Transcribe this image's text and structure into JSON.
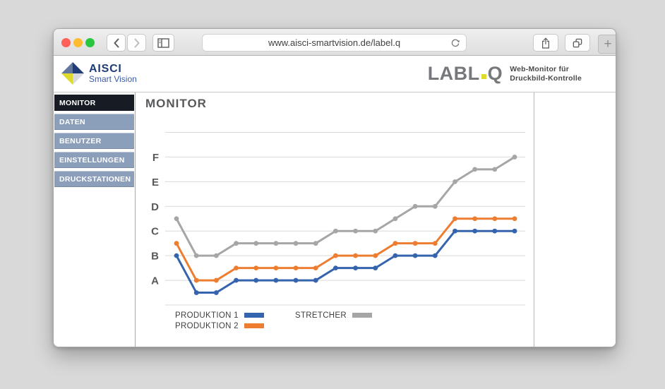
{
  "browser": {
    "url": "www.aisci-smartvision.de/label.q",
    "new_tab_label": "+",
    "icons": {
      "close": "red-traffic-light",
      "minimize": "yellow-traffic-light",
      "zoom": "green-traffic-light",
      "back": "chevron-left",
      "forward": "chevron-right",
      "sidebar_toggle": "sidebar-panel",
      "reload": "refresh-arrow",
      "share": "box-with-up-arrow",
      "tab_overview": "overlapping-squares",
      "new_tab": "plus"
    }
  },
  "header": {
    "brand_name": "AISCI",
    "brand_subtitle": "Smart Vision",
    "product_left": "LABL",
    "product_right": "Q",
    "tagline_line1": "Web-Monitor für",
    "tagline_line2": "Druckbild-Kontrolle"
  },
  "sidebar": {
    "items": [
      {
        "label": "MONITOR",
        "active": true
      },
      {
        "label": "DATEN",
        "active": false
      },
      {
        "label": "BENUTZER",
        "active": false
      },
      {
        "label": "EINSTELLUNGEN",
        "active": false
      },
      {
        "label": "DRUCKSTATIONEN",
        "active": false
      }
    ]
  },
  "main": {
    "title": "MONITOR"
  },
  "colors": {
    "series_blue": "#3564AE",
    "series_orange": "#ED7D31",
    "series_gray": "#A6A6A6",
    "sidebar_item": "#8B9FBA",
    "sidebar_active": "#161B24",
    "logo_navy": "#1F3C77",
    "logo_slate": "#64789F",
    "logo_yellow": "#DFDB2E",
    "traffic_red": "#FF5F57",
    "traffic_yellow": "#FEBC2E",
    "traffic_green": "#2AC63F"
  },
  "chart_data": {
    "type": "line",
    "title": "",
    "y_axis_labels": [
      "A",
      "B",
      "C",
      "D",
      "E",
      "F"
    ],
    "y_label_values": [
      1,
      2,
      3,
      4,
      5,
      6
    ],
    "ylim": [
      0,
      7
    ],
    "grid": true,
    "legend_position": "bottom-left",
    "x_tick_labels_visible": false,
    "series": [
      {
        "name": "PRODUKTION 1",
        "color": "#3564AE",
        "values": [
          2,
          0.5,
          0.5,
          1,
          1,
          1,
          1,
          1,
          1.5,
          1.5,
          1.5,
          2,
          2,
          2,
          3,
          3,
          3,
          3
        ]
      },
      {
        "name": "PRODUKTION 2",
        "color": "#ED7D31",
        "values": [
          2.5,
          1,
          1,
          1.5,
          1.5,
          1.5,
          1.5,
          1.5,
          2,
          2,
          2,
          2.5,
          2.5,
          2.5,
          3.5,
          3.5,
          3.5,
          3.5
        ]
      },
      {
        "name": "STRETCHER",
        "color": "#A6A6A6",
        "values": [
          3.5,
          2,
          2,
          2.5,
          2.5,
          2.5,
          2.5,
          2.5,
          3,
          3,
          3,
          3.5,
          4,
          4,
          5,
          5.5,
          5.5,
          6
        ]
      }
    ]
  }
}
